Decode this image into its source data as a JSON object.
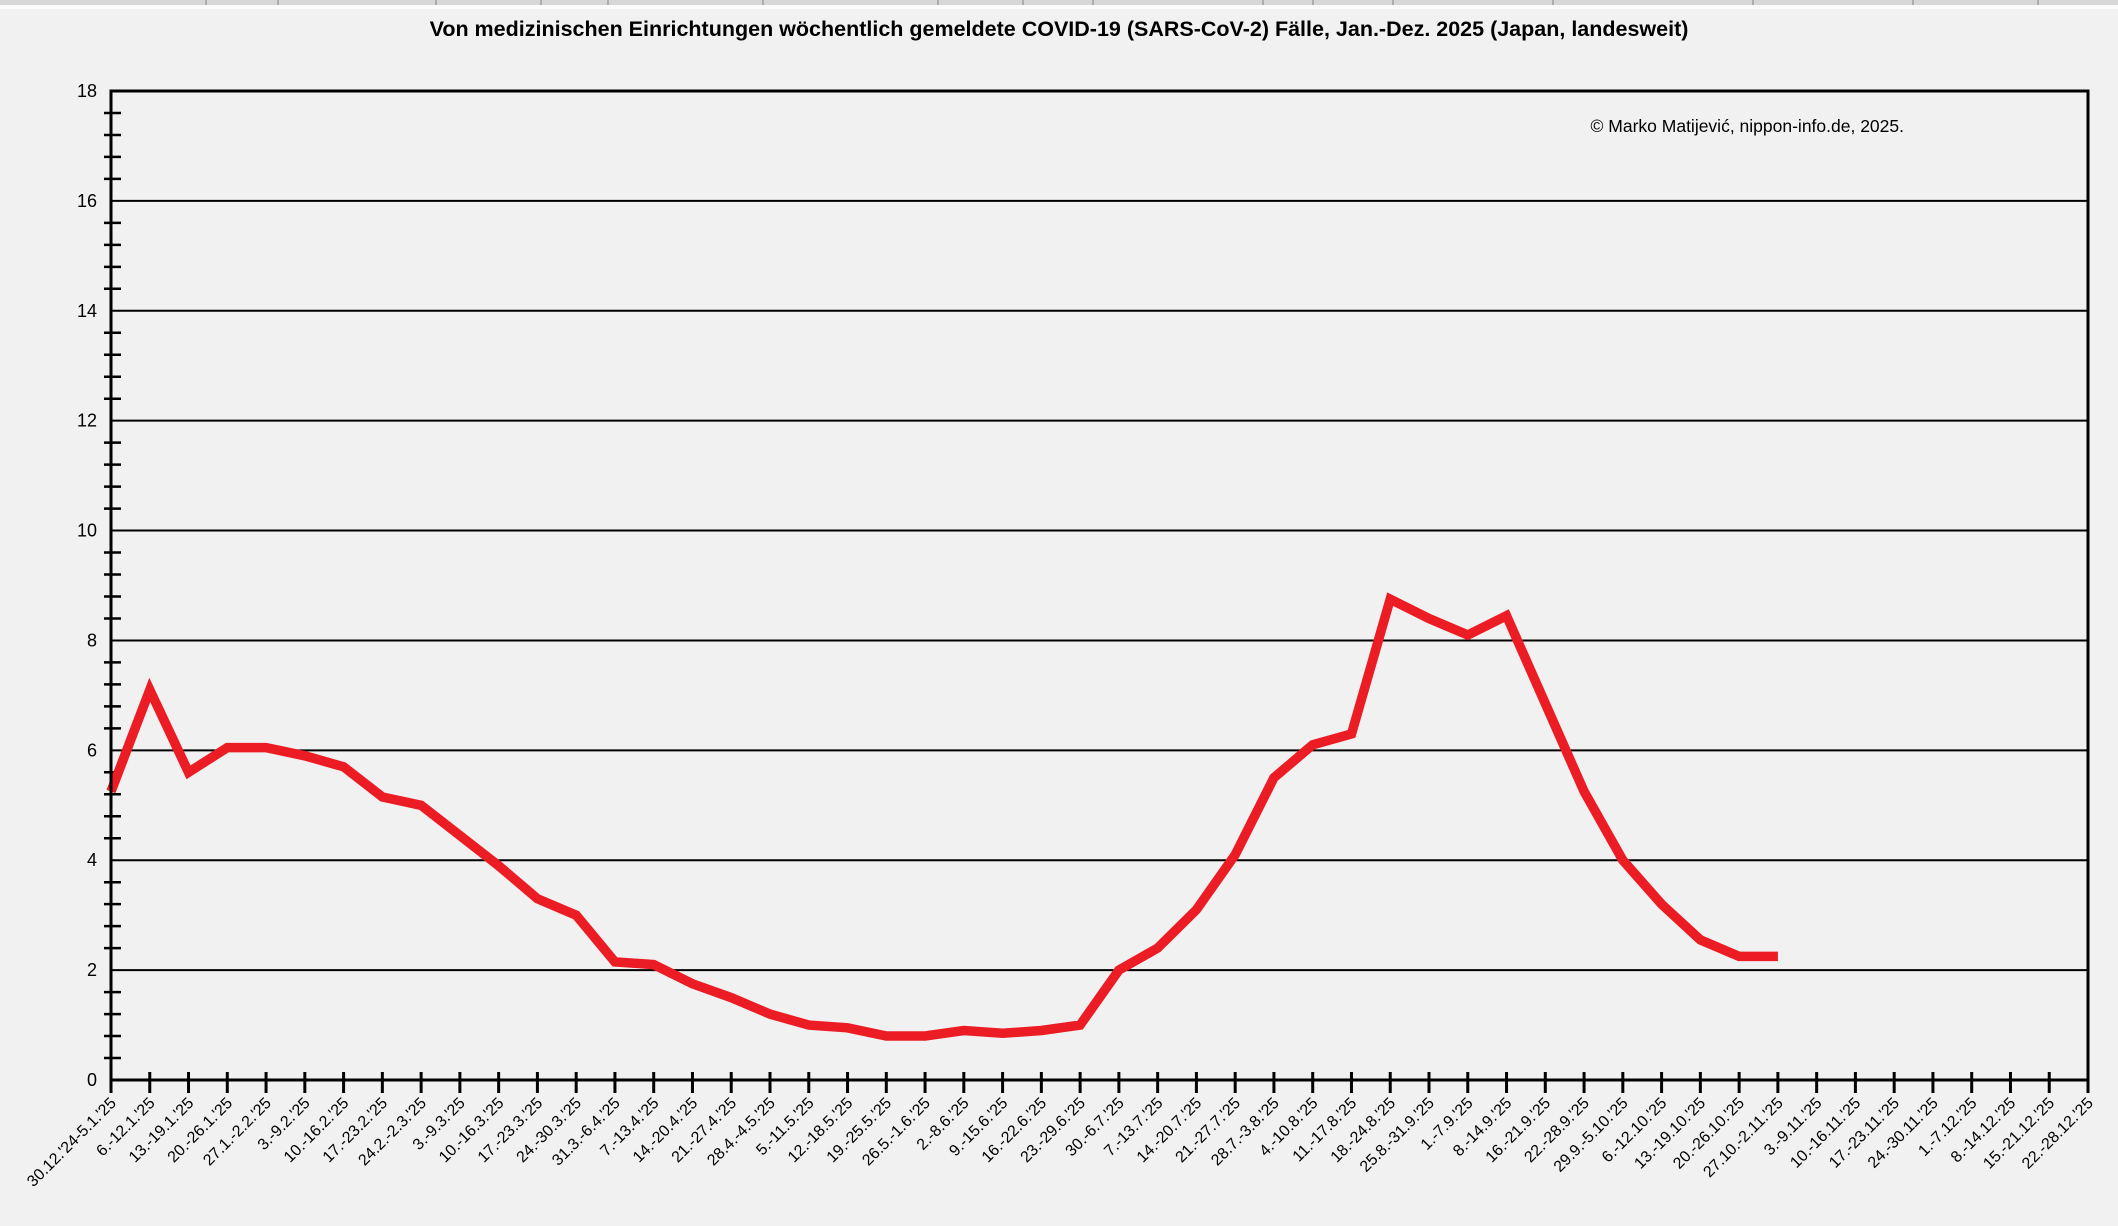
{
  "chart_data": {
    "type": "line",
    "title": "Von medizinischen Einrichtungen wöchentlich gemeldete COVID-19 (SARS-CoV-2) Fälle, Jan.-Dez. 2025 (Japan, landesweit)",
    "copyright": "© Marko Matijević, nippon-info.de, 2025.",
    "ylim": [
      0,
      18
    ],
    "ytick_step": 2,
    "y_minor_tick_step": 0.4,
    "grid": "horizontal",
    "legend": "none",
    "line_color": "#ec1c24",
    "background_color": "#f1f1f1",
    "categories": [
      "30.12.'24-5.1.'25",
      "6.-12.1.'25",
      "13.-19.1.'25",
      "20.-26.1.'25",
      "27.1.-2.2.'25",
      "3.-9.2.'25",
      "10.-16.2.'25",
      "17.-23.2.'25",
      "24.2.-2.3.'25",
      "3.-9.3.'25",
      "10.-16.3.'25",
      "17.-23.3.'25",
      "24.-30.3.'25",
      "31.3.-6.4.'25",
      "7.-13.4.'25",
      "14.-20.4.'25",
      "21.-27.4.'25",
      "28.4.-4.5.'25",
      "5.-11.5.'25",
      "12.-18.5.'25",
      "19.-25.5.'25",
      "26.5.-1.6.'25",
      "2.-8.6.'25",
      "9.-15.6.'25",
      "16.-22.6.'25",
      "23.-29.6.'25",
      "30.-6.7.'25",
      "7.-13.7.'25",
      "14.-20.7.'25",
      "21.-27.7.'25",
      "28.7.-3.8.'25",
      "4.-10.8.'25",
      "11.-17.8.'25",
      "18.-24.8.'25",
      "25.8.-31.9.'25",
      "1.-7.9.'25",
      "8.-14.9.'25",
      "16.-21.9.'25",
      "22.-28.9.'25",
      "29.9.-5.10.'25",
      "6.-12.10.'25",
      "13.-19.10.'25",
      "20.-26.10.'25",
      "27.10.-2.11.'25",
      "3.-9.11.'25",
      "10.-16.11.'25",
      "17.-23.11.'25",
      "24.-30.11.'25",
      "1.-7.12.'25",
      "8.-14.12.'25",
      "15.-21.12.'25",
      "22.-28.12.'25"
    ],
    "values": [
      5.25,
      7.1,
      5.6,
      6.05,
      6.05,
      5.9,
      5.7,
      5.15,
      5.0,
      4.45,
      3.9,
      3.3,
      3.0,
      2.15,
      2.1,
      1.75,
      1.5,
      1.2,
      1.0,
      0.95,
      0.8,
      0.8,
      0.9,
      0.85,
      0.9,
      1.0,
      2.0,
      2.4,
      3.1,
      4.1,
      5.5,
      6.1,
      6.3,
      8.75,
      8.4,
      8.1,
      8.45,
      6.85,
      5.25,
      4.0,
      3.2,
      2.55,
      2.25,
      2.25,
      null,
      null,
      null,
      null,
      null,
      null,
      null,
      null
    ]
  }
}
